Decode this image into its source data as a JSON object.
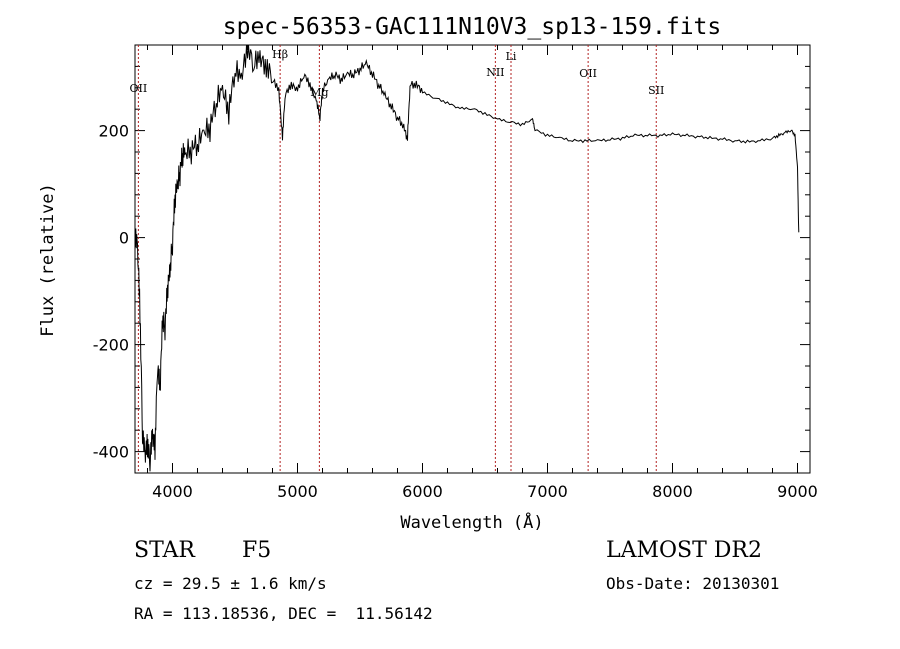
{
  "chart_data": {
    "type": "line",
    "title": "spec-56353-GAC111N10V3_sp13-159.fits",
    "xlabel": "Wavelength (Å)",
    "ylabel": "Flux (relative)",
    "xlim": [
      3700,
      9100
    ],
    "ylim": [
      -440,
      360
    ],
    "x_ticks": [
      4000,
      5000,
      6000,
      7000,
      8000,
      9000
    ],
    "y_ticks": [
      -400,
      -200,
      0,
      200
    ],
    "line_color": "#000000",
    "marker_color": "#b22222",
    "lines": [
      {
        "label": "OII",
        "wavelength": 3727
      },
      {
        "label": "Hβ",
        "wavelength": 4861
      },
      {
        "label": "Mg",
        "wavelength": 5175
      },
      {
        "label": "NII",
        "wavelength": 6583
      },
      {
        "label": "Li",
        "wavelength": 6708
      },
      {
        "label": "OII",
        "wavelength": 7325
      },
      {
        "label": "SII",
        "wavelength": 7870
      }
    ],
    "series": [
      {
        "x": [
          3700,
          3720,
          3740,
          3760,
          3780,
          3800,
          3820,
          3840,
          3860,
          3880,
          3900,
          3920,
          3940,
          3960,
          3980,
          4000,
          4020,
          4040,
          4060,
          4080,
          4100,
          4150,
          4200,
          4250,
          4300,
          4350,
          4400,
          4450,
          4500,
          4550,
          4600,
          4650,
          4700,
          4750,
          4800,
          4850,
          4880,
          4900,
          4950,
          5000,
          5050,
          5100,
          5150,
          5180,
          5200,
          5250,
          5300,
          5350,
          5400,
          5450,
          5500,
          5550,
          5600,
          5650,
          5700,
          5750,
          5800,
          5850,
          5880,
          5900,
          5950,
          6000,
          6100,
          6200,
          6300,
          6400,
          6500,
          6600,
          6700,
          6800,
          6880,
          6900,
          7000,
          7100,
          7200,
          7300,
          7400,
          7500,
          7600,
          7700,
          7800,
          7900,
          8000,
          8100,
          8200,
          8300,
          8400,
          8500,
          8600,
          8700,
          8800,
          8850,
          8900,
          8950,
          8980,
          9000,
          9010
        ],
        "y": [
          -10,
          -30,
          -150,
          -380,
          -420,
          -400,
          -430,
          -380,
          -410,
          -250,
          -300,
          -170,
          -180,
          -110,
          -80,
          -20,
          60,
          80,
          110,
          140,
          140,
          150,
          160,
          180,
          190,
          240,
          260,
          220,
          300,
          280,
          340,
          310,
          320,
          300,
          290,
          270,
          180,
          260,
          280,
          270,
          300,
          280,
          250,
          220,
          270,
          290,
          300,
          290,
          300,
          300,
          310,
          320,
          300,
          280,
          260,
          240,
          220,
          200,
          180,
          280,
          280,
          270,
          260,
          250,
          240,
          240,
          230,
          220,
          215,
          210,
          220,
          200,
          190,
          185,
          180,
          180,
          180,
          182,
          185,
          190,
          190,
          190,
          192,
          190,
          188,
          185,
          183,
          180,
          178,
          180,
          185,
          190,
          195,
          200,
          190,
          130,
          10
        ]
      }
    ]
  },
  "info": {
    "object_class": "STAR",
    "subclass": "F5",
    "redshift": "cz = 29.5 ± 1.6 km/s",
    "coords": "RA = 113.18536, DEC =  11.56142",
    "survey": "LAMOST DR2",
    "obs_date": "Obs-Date: 20130301"
  }
}
